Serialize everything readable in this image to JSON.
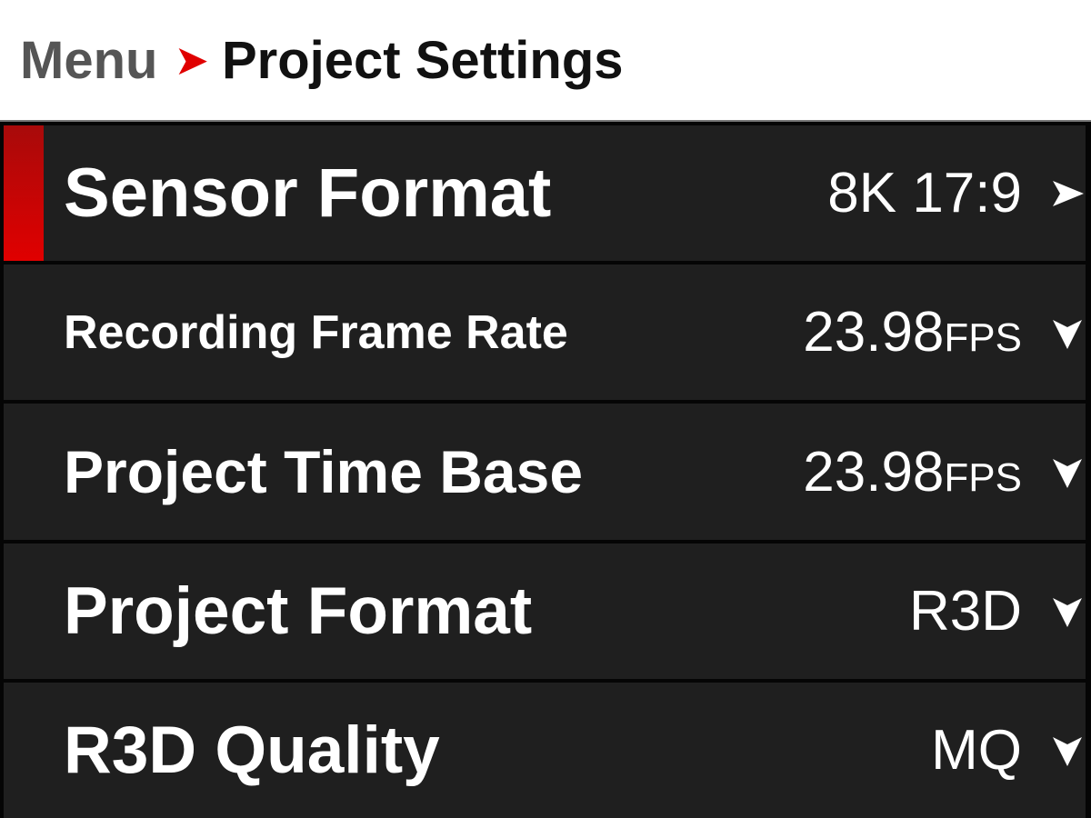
{
  "breadcrumb": {
    "parent": "Menu",
    "separator": "➤",
    "current": "Project Settings"
  },
  "accent_color": "#e00000",
  "rows": [
    {
      "label": "Sensor Format",
      "value": "8K 17:9",
      "unit": "",
      "icon": "chevron-right-icon",
      "selected": true
    },
    {
      "label": "Recording Frame Rate",
      "value": "23.98",
      "unit": "FPS",
      "icon": "chevron-down-icon",
      "selected": false
    },
    {
      "label": "Project Time Base",
      "value": "23.98",
      "unit": "FPS",
      "icon": "chevron-down-icon",
      "selected": false
    },
    {
      "label": "Project Format",
      "value": "R3D",
      "unit": "",
      "icon": "chevron-down-icon",
      "selected": false
    },
    {
      "label": "R3D Quality",
      "value": "MQ",
      "unit": "",
      "icon": "chevron-down-icon",
      "selected": false
    }
  ]
}
